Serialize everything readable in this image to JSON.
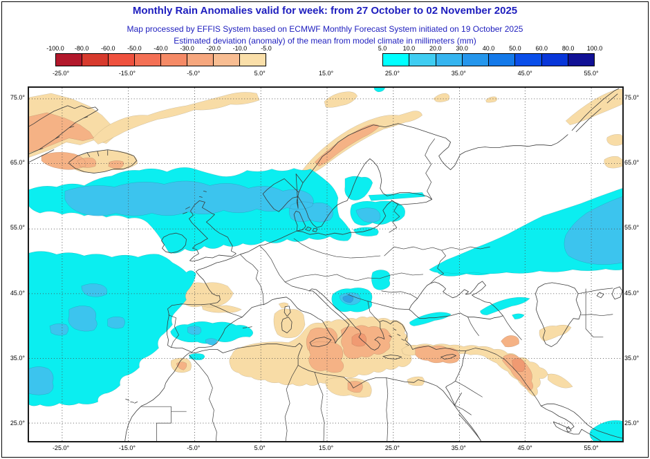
{
  "header": {
    "title": "Monthly Rain Anomalies valid for week: from 27 October to 02 November 2025",
    "subtitle1": "Map processed by EFFIS System based on ECMWF Monthly Forecast System initiated on 19 October 2025",
    "subtitle2": "Estimated deviation (anomaly) of the mean from model climate in millimeters (mm)"
  },
  "legend": {
    "negative": {
      "labels": [
        "-100.0",
        "-80.0",
        "-60.0",
        "-50.0",
        "-40.0",
        "-30.0",
        "-20.0",
        "-10.0",
        "-5.0"
      ],
      "colors": [
        "#b2182b",
        "#d73a2d",
        "#ef513e",
        "#f47055",
        "#f58a66",
        "#f6a77e",
        "#f8bd92",
        "#fadfa9"
      ]
    },
    "positive": {
      "labels": [
        "5.0",
        "10.0",
        "20.0",
        "30.0",
        "40.0",
        "50.0",
        "60.0",
        "80.0",
        "100.0"
      ],
      "colors": [
        "#00ffff",
        "#3fcdf2",
        "#36b5f0",
        "#2596ec",
        "#1479e9",
        "#0a4ee9",
        "#0836d9",
        "#111195"
      ]
    }
  },
  "axes": {
    "lon": [
      "-25.0°",
      "-15.0°",
      "-5.0°",
      "5.0°",
      "15.0°",
      "25.0°",
      "35.0°",
      "45.0°",
      "55.0°"
    ],
    "lat": [
      "75.0°",
      "65.0°",
      "55.0°",
      "45.0°",
      "35.0°",
      "25.0°"
    ]
  },
  "colors": {
    "header_text": "#1d1dbe",
    "pos_5_10": "#0beef0",
    "pos_10_20": "#3cc4ee",
    "pos_20_30": "#2fa4e6",
    "neg_5_10": "#f8dca6",
    "neg_10_20": "#f5b285",
    "neg_20_30": "#f09a72",
    "coast": "#3a3a3a",
    "grid": "#4a4a4a"
  }
}
